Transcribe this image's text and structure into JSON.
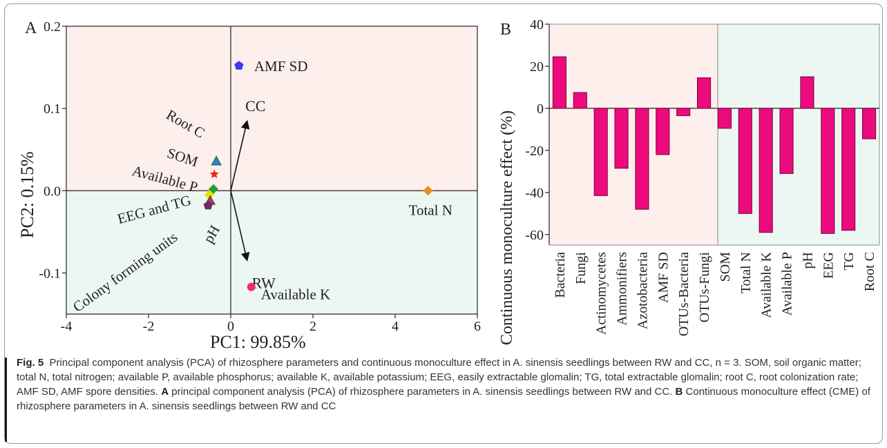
{
  "figure": {
    "caption_label": "Fig. 5",
    "caption_text_1": "Principal component analysis (PCA) of rhizosphere parameters and continuous monoculture effect in A. sinensis seedlings between RW and CC, n = 3. SOM, soil organic matter; total N, total nitrogen; available P, available phosphorus; available K, available potassium; EEG, easily extractable glomalin; TG, total extractable glomalin; root C, root colonization rate; AMF SD, AMF spore densities.",
    "caption_label_a": "A",
    "caption_text_2": "principal component analysis (PCA) of rhizosphere parameters in A. sinensis seedlings between RW and CC.",
    "caption_label_b": "B",
    "caption_text_3": "Continuous monoculture effect (CME) of rhizosphere parameters in A. sinensis seedlings between RW and CC"
  },
  "colors": {
    "pink_bg": "#fcefec",
    "green_bg": "#edf7f2",
    "bar": "#ec0b7d",
    "bar_stroke": "#7a0040"
  },
  "chart_data": [
    {
      "panel_label": "A",
      "type": "scatter",
      "xlabel": "PC1: 99.85%",
      "ylabel": "PC2: 0.15%",
      "xlim": [
        -4,
        6
      ],
      "ylim": [
        -0.15,
        0.2
      ],
      "xticks": [
        "-4",
        "-2",
        "0",
        "2",
        "4",
        "6"
      ],
      "yticks": [
        "0.2",
        "0.1",
        "0.0",
        "-0.1"
      ],
      "ytick_values": [
        0.2,
        0.1,
        0.0,
        -0.1
      ],
      "xtick_values": [
        -4,
        -2,
        0,
        2,
        4,
        6
      ],
      "points": [
        {
          "label": "AMF SD",
          "x": 0.2,
          "y": 0.152,
          "marker": "pentagon",
          "color": "#3b3bf0"
        },
        {
          "label": "Total N",
          "x": 4.8,
          "y": 0.0,
          "marker": "diamond",
          "color": "#f08a24"
        },
        {
          "label": "Available K",
          "x": 0.5,
          "y": -0.117,
          "marker": "circle",
          "color": "#ee2b7a"
        },
        {
          "label": "Root C",
          "x": -0.35,
          "y": 0.036,
          "marker": "triangle",
          "color": "#2f7fd0"
        },
        {
          "label": "SOM",
          "x": -0.4,
          "y": 0.02,
          "marker": "star",
          "color": "#ee2222"
        },
        {
          "label": "Available P",
          "x": -0.42,
          "y": 0.002,
          "marker": "diamond",
          "color": "#2a9a3a"
        },
        {
          "label": "EEG and TG",
          "x": -0.52,
          "y": -0.005,
          "marker": "diamond",
          "color": "#e8e000"
        },
        {
          "label": "pH",
          "x": -0.5,
          "y": -0.012,
          "marker": "triangle",
          "color": "#c03060"
        },
        {
          "label": "Colony forming units",
          "x": -0.55,
          "y": -0.018,
          "marker": "pentagon",
          "color": "#6a2a6a"
        }
      ],
      "vectors": [
        {
          "label": "CC",
          "x": 0.4,
          "y": 0.085
        },
        {
          "label": "RW",
          "x": 0.4,
          "y": -0.085
        }
      ]
    },
    {
      "panel_label": "B",
      "type": "bar",
      "ylabel": "Continuous monoculture effect (%)",
      "ylim": [
        -65,
        40
      ],
      "yticks": [
        "40",
        "20",
        "0",
        "-20",
        "-40",
        "-60"
      ],
      "ytick_values": [
        40,
        20,
        0,
        -20,
        -40,
        -60
      ],
      "categories": [
        "Bacteria",
        "Fungi",
        "Actinomycetes",
        "Ammonifiers",
        "Azotobacteria",
        "AMF SD",
        "OTUs-Bacteria",
        "OTUs-Fungi",
        "SOM",
        "Total N",
        "Available K",
        "Available P",
        "pH",
        "EEG",
        "TG",
        "Root C"
      ],
      "values": [
        24.5,
        7.5,
        -41.5,
        -28.5,
        -48,
        -22,
        -3.5,
        14.5,
        -9.5,
        -50,
        -59,
        -31,
        15,
        -59.5,
        -58,
        -14.5
      ]
    }
  ]
}
